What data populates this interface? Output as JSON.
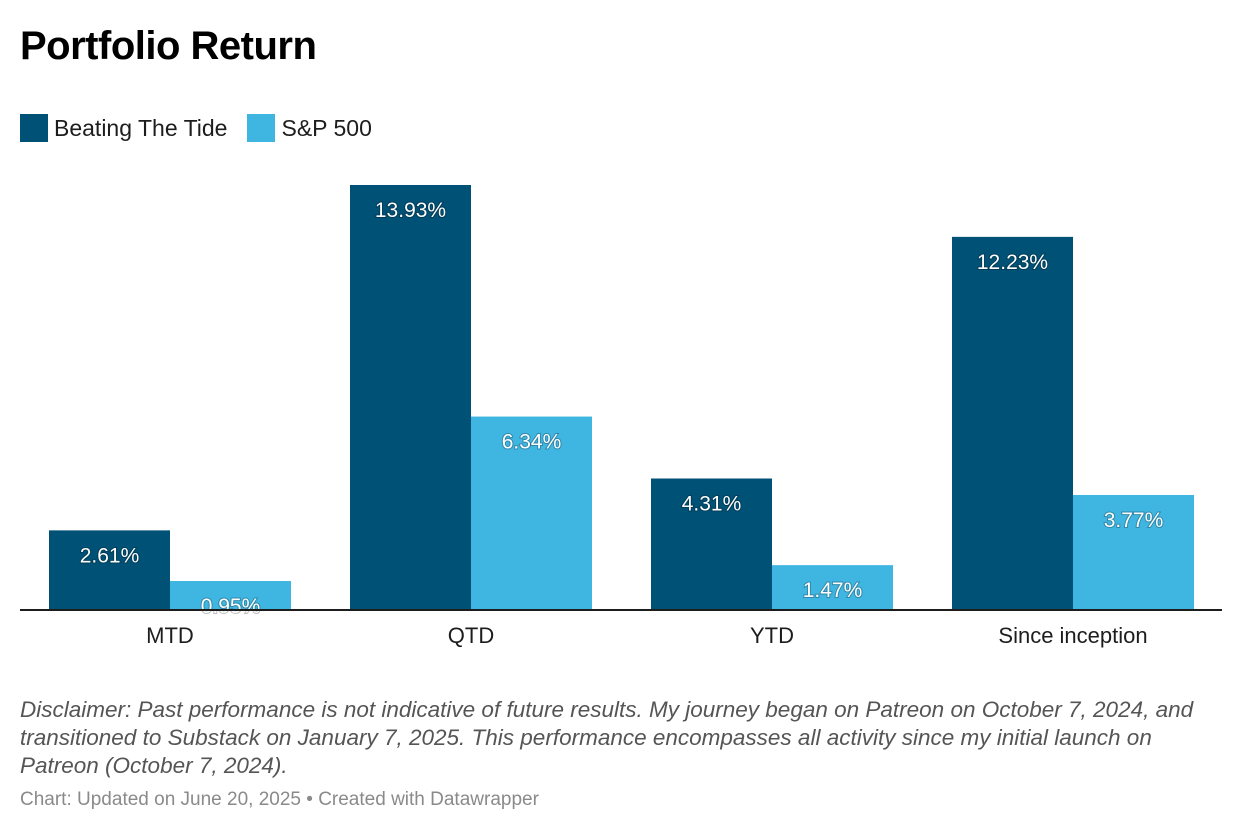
{
  "title": "Portfolio Return",
  "legend": [
    {
      "label": "Beating The Tide",
      "color": "#005176"
    },
    {
      "label": "S&P 500",
      "color": "#3fb6e2"
    }
  ],
  "notes": "Disclaimer: Past performance is not indicative of future results. My journey began on Patreon on October 7, 2024, and transitioned to Substack on January 7, 2025. This performance encompasses all activity since my initial launch on Patreon (October 7, 2024).",
  "credit": "Chart: Updated on June 20, 2025 • Created with Datawrapper",
  "chart_data": {
    "type": "bar",
    "title": "Portfolio Return",
    "categories": [
      "MTD",
      "QTD",
      "YTD",
      "Since inception"
    ],
    "series": [
      {
        "name": "Beating The Tide",
        "color": "#005176",
        "values": [
          2.61,
          13.93,
          4.31,
          12.23
        ],
        "labels": [
          "2.61%",
          "13.93%",
          "4.31%",
          "12.23%"
        ]
      },
      {
        "name": "S&P 500",
        "color": "#3fb6e2",
        "values": [
          0.95,
          6.34,
          1.47,
          3.77
        ],
        "labels": [
          "0.95%",
          "6.34%",
          "1.47%",
          "3.77%"
        ]
      }
    ],
    "value_suffix": "%",
    "ylim": [
      0,
      13.93
    ],
    "grid": false,
    "legend_position": "top-left",
    "xlabel": "",
    "ylabel": ""
  }
}
